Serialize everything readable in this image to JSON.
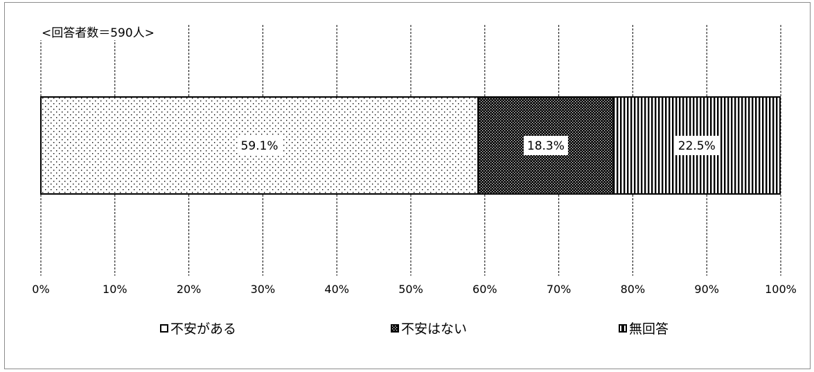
{
  "chart_data": {
    "type": "bar",
    "orientation": "horizontal",
    "stacked": true,
    "percent_stacked": true,
    "note": "<回答者数＝590人>",
    "series": [
      {
        "name": "不安がある",
        "values": [
          59.1
        ],
        "label": "59.1%",
        "pattern": "sparse-dots"
      },
      {
        "name": "不安はない",
        "values": [
          18.3
        ],
        "label": "18.3%",
        "pattern": "dense-dots"
      },
      {
        "name": "無回答",
        "values": [
          22.5
        ],
        "label": "22.5%",
        "pattern": "vertical-stripes"
      }
    ],
    "xlim": [
      0,
      100
    ],
    "x_ticks": [
      "0%",
      "10%",
      "20%",
      "30%",
      "40%",
      "50%",
      "60%",
      "70%",
      "80%",
      "90%",
      "100%"
    ],
    "grid": "vertical dashed",
    "legend_position": "bottom",
    "colors": {
      "ink": "#000000",
      "background": "#ffffff"
    }
  }
}
